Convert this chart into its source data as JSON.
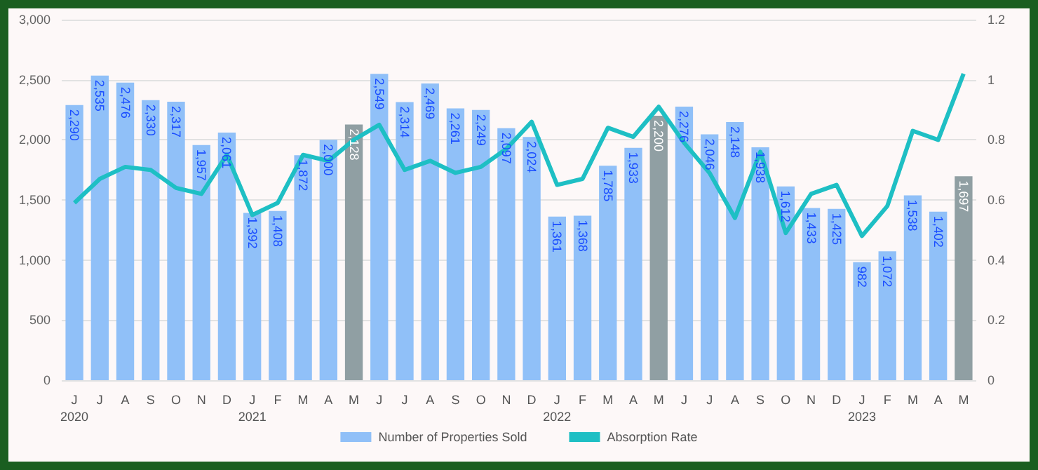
{
  "chart_data": {
    "type": "bar",
    "categories": [
      "J\n2020",
      "J",
      "A",
      "S",
      "O",
      "N",
      "D",
      "J\n2021",
      "F",
      "M",
      "A",
      "M",
      "J",
      "J",
      "A",
      "S",
      "O",
      "N",
      "D",
      "J\n2022",
      "F",
      "M",
      "A",
      "M",
      "J",
      "J",
      "A",
      "S",
      "O",
      "N",
      "D",
      "J\n2023",
      "F",
      "M",
      "A",
      "M"
    ],
    "series": [
      {
        "name": "Number of Properties Sold",
        "color": "#90c0f8",
        "colors": [
          "#90c0f8",
          "#90c0f8",
          "#90c0f8",
          "#90c0f8",
          "#90c0f8",
          "#90c0f8",
          "#90c0f8",
          "#90c0f8",
          "#90c0f8",
          "#90c0f8",
          "#90c0f8",
          "#909fa3",
          "#90c0f8",
          "#90c0f8",
          "#90c0f8",
          "#90c0f8",
          "#90c0f8",
          "#90c0f8",
          "#90c0f8",
          "#90c0f8",
          "#90c0f8",
          "#90c0f8",
          "#90c0f8",
          "#909fa3",
          "#90c0f8",
          "#90c0f8",
          "#90c0f8",
          "#90c0f8",
          "#90c0f8",
          "#90c0f8",
          "#90c0f8",
          "#90c0f8",
          "#90c0f8",
          "#90c0f8",
          "#90c0f8",
          "#909fa3"
        ],
        "values": [
          2290,
          2535,
          2476,
          2330,
          2317,
          1957,
          2061,
          1392,
          1408,
          1872,
          2000,
          2128,
          2549,
          2314,
          2469,
          2261,
          2249,
          2097,
          2024,
          1361,
          1368,
          1785,
          1933,
          2200,
          2276,
          2046,
          2148,
          1938,
          1612,
          1433,
          1425,
          982,
          1072,
          1538,
          1402,
          1697
        ],
        "value_labels": [
          "2,290",
          "2,535",
          "2,476",
          "2,330",
          "2,317",
          "1,957",
          "2,061",
          "1,392",
          "1,408",
          "1,872",
          "2,000",
          "2,128",
          "2,549",
          "2,314",
          "2,469",
          "2,261",
          "2,249",
          "2,097",
          "2,024",
          "1,361",
          "1,368",
          "1,785",
          "1,933",
          "2,200",
          "2,276",
          "2,046",
          "2,148",
          "1,938",
          "1,612",
          "1,433",
          "1,425",
          "982",
          "1,072",
          "1,538",
          "1,402",
          "1,697"
        ]
      },
      {
        "name": "Absorption Rate",
        "type": "line",
        "axis": "y2",
        "color": "#1ebfc4",
        "values": [
          0.59,
          0.67,
          0.71,
          0.7,
          0.64,
          0.62,
          0.75,
          0.55,
          0.59,
          0.75,
          0.73,
          0.8,
          0.85,
          0.7,
          0.73,
          0.69,
          0.71,
          0.77,
          0.86,
          0.65,
          0.67,
          0.84,
          0.81,
          0.91,
          0.79,
          0.69,
          0.54,
          0.76,
          0.49,
          0.62,
          0.65,
          0.48,
          0.58,
          0.83,
          0.8,
          1.02
        ]
      }
    ],
    "ylim": [
      0,
      3000
    ],
    "yticks": [
      "0",
      "500",
      "1,000",
      "1,500",
      "2,000",
      "2,500",
      "3,000"
    ],
    "y2lim": [
      0,
      1.2
    ],
    "y2ticks": [
      0,
      0.2,
      0.4,
      0.6,
      0.8,
      1,
      1.2
    ],
    "grid": "y",
    "legend": "bottom",
    "marker": "none",
    "line_style": "solid"
  }
}
